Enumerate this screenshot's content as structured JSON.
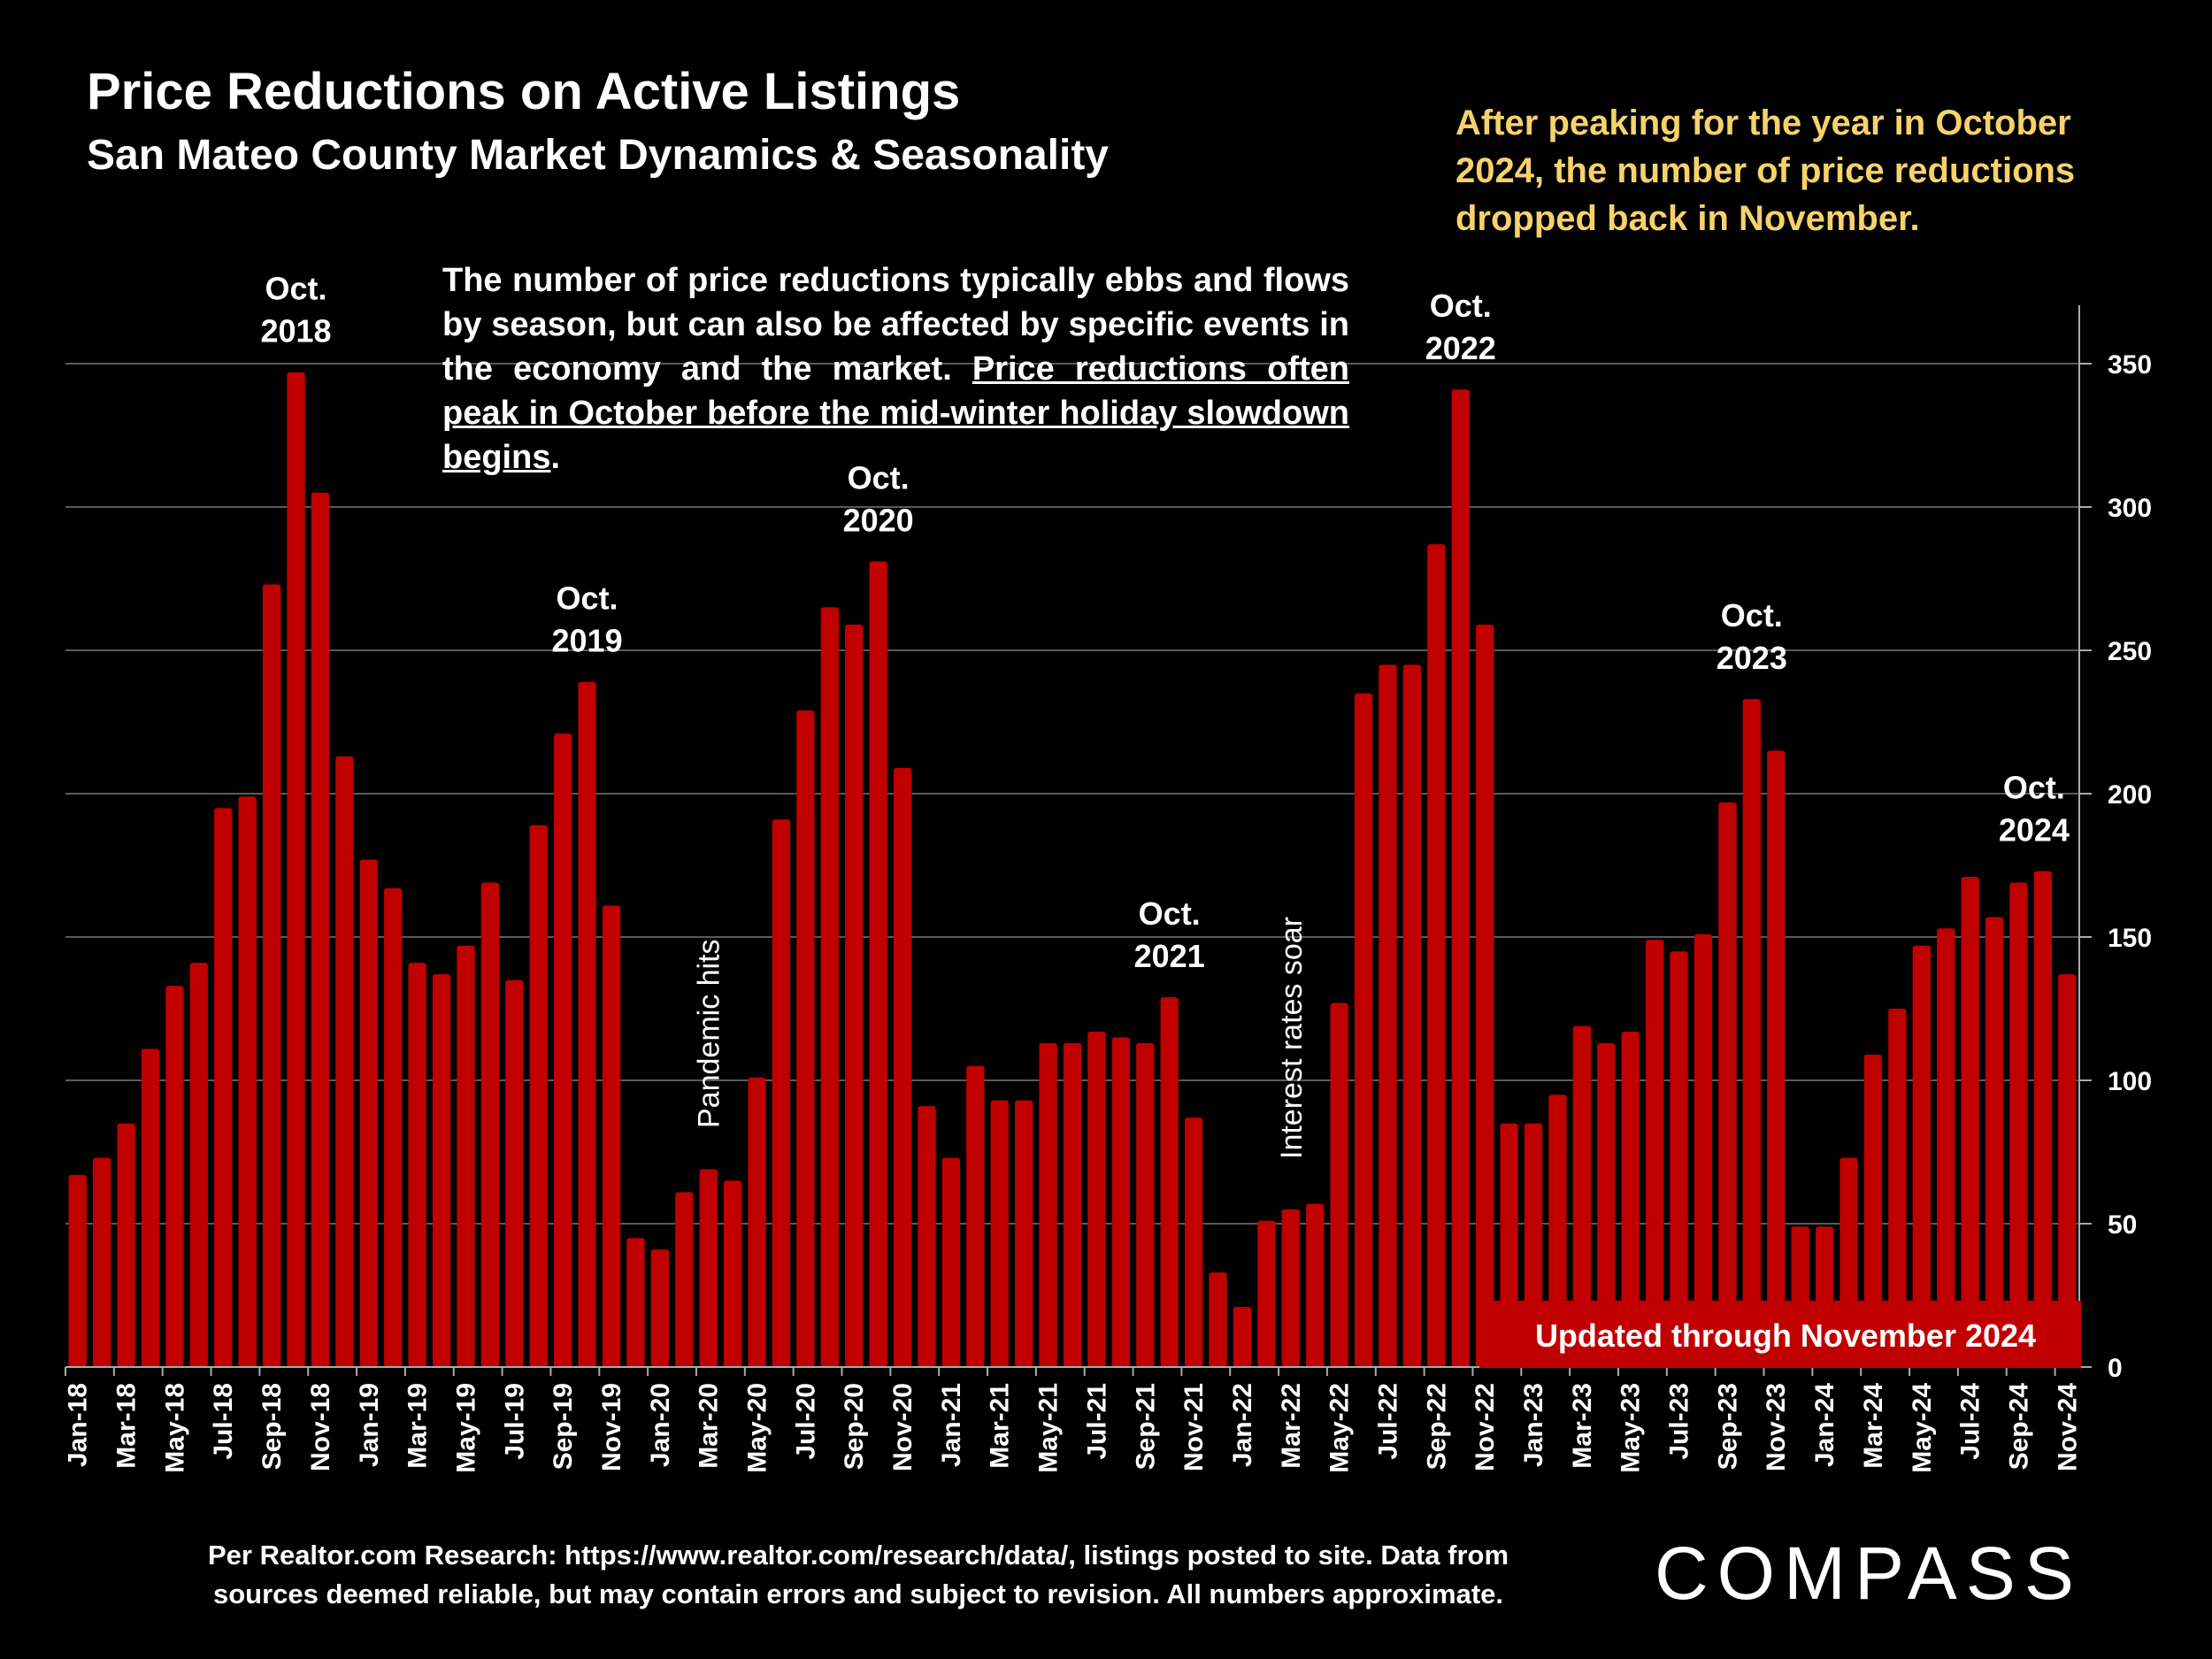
{
  "header": {
    "title": "Price Reductions on Active Listings",
    "subtitle": "San Mateo County Market Dynamics & Seasonality"
  },
  "callout": "After peaking for the year in October 2024, the number of price reductions dropped back in November.",
  "note": {
    "plain": "The number of price reductions typically ebbs and flows by season, but can also be affected by specific events in the economy and the market. ",
    "underlined": "Price reductions often peak in October before the mid-winter holiday slowdown begins",
    "end": "."
  },
  "updated_badge": "Updated through November 2024",
  "footer": {
    "line1": "Per Realtor.com Research:  https://www.realtor.com/research/data/, listings posted to site. Data from",
    "line2": "sources deemed reliable, but may contain errors and subject to revision. All numbers approximate."
  },
  "logo": "COMPASS",
  "colors": {
    "bar": "#c00000",
    "callout": "#f7d26a",
    "background": "#000000"
  },
  "chart_data": {
    "type": "bar",
    "title": "Price Reductions on Active Listings",
    "subtitle": "San Mateo County Market Dynamics & Seasonality",
    "xlabel": "",
    "ylabel": "",
    "ylim": [
      0,
      370
    ],
    "yticks": [
      0,
      50,
      100,
      150,
      200,
      250,
      300,
      350
    ],
    "y_axis_side": "right",
    "grid": true,
    "categories": [
      "Jan-18",
      "Feb-18",
      "Mar-18",
      "Apr-18",
      "May-18",
      "Jun-18",
      "Jul-18",
      "Aug-18",
      "Sep-18",
      "Oct-18",
      "Nov-18",
      "Dec-18",
      "Jan-19",
      "Feb-19",
      "Mar-19",
      "Apr-19",
      "May-19",
      "Jun-19",
      "Jul-19",
      "Aug-19",
      "Sep-19",
      "Oct-19",
      "Nov-19",
      "Dec-19",
      "Jan-20",
      "Feb-20",
      "Mar-20",
      "Apr-20",
      "May-20",
      "Jun-20",
      "Jul-20",
      "Aug-20",
      "Sep-20",
      "Oct-20",
      "Nov-20",
      "Dec-20",
      "Jan-21",
      "Feb-21",
      "Mar-21",
      "Apr-21",
      "May-21",
      "Jun-21",
      "Jul-21",
      "Aug-21",
      "Sep-21",
      "Oct-21",
      "Nov-21",
      "Dec-21",
      "Jan-22",
      "Feb-22",
      "Mar-22",
      "Apr-22",
      "May-22",
      "Jun-22",
      "Jul-22",
      "Aug-22",
      "Sep-22",
      "Oct-22",
      "Nov-22",
      "Dec-22",
      "Jan-23",
      "Feb-23",
      "Mar-23",
      "Apr-23",
      "May-23",
      "Jun-23",
      "Jul-23",
      "Aug-23",
      "Sep-23",
      "Oct-23",
      "Nov-23",
      "Dec-23",
      "Jan-24",
      "Feb-24",
      "Mar-24",
      "Apr-24",
      "May-24",
      "Jun-24",
      "Jul-24",
      "Aug-24",
      "Sep-24",
      "Oct-24",
      "Nov-24"
    ],
    "values": [
      67,
      73,
      85,
      111,
      133,
      141,
      195,
      199,
      273,
      347,
      305,
      213,
      177,
      167,
      141,
      137,
      147,
      169,
      135,
      189,
      221,
      239,
      161,
      45,
      41,
      61,
      69,
      65,
      101,
      191,
      229,
      265,
      259,
      281,
      209,
      91,
      73,
      105,
      93,
      93,
      113,
      113,
      117,
      115,
      113,
      129,
      87,
      33,
      21,
      51,
      55,
      57,
      127,
      235,
      245,
      245,
      287,
      341,
      259,
      85,
      85,
      95,
      119,
      113,
      117,
      149,
      145,
      151,
      197,
      233,
      215,
      49,
      49,
      73,
      109,
      125,
      147,
      153,
      171,
      157,
      169,
      173,
      137
    ],
    "annotations": [
      {
        "category": "Oct-18",
        "lines": [
          "Oct.",
          "2018"
        ]
      },
      {
        "category": "Oct-19",
        "lines": [
          "Oct.",
          "2019"
        ]
      },
      {
        "category": "Oct-20",
        "lines": [
          "Oct.",
          "2020"
        ]
      },
      {
        "category": "Oct-21",
        "lines": [
          "Oct.",
          "2021"
        ]
      },
      {
        "category": "Oct-22",
        "lines": [
          "Oct.",
          "2022"
        ]
      },
      {
        "category": "Oct-23",
        "lines": [
          "Oct.",
          "2023"
        ]
      },
      {
        "category": "Oct-24",
        "lines": [
          "Oct.",
          "2024"
        ]
      }
    ],
    "event_labels": [
      {
        "category": "Mar-20",
        "text": "Pandemic hits"
      },
      {
        "category": "Mar-22",
        "text": "Interest rates soar"
      }
    ]
  }
}
